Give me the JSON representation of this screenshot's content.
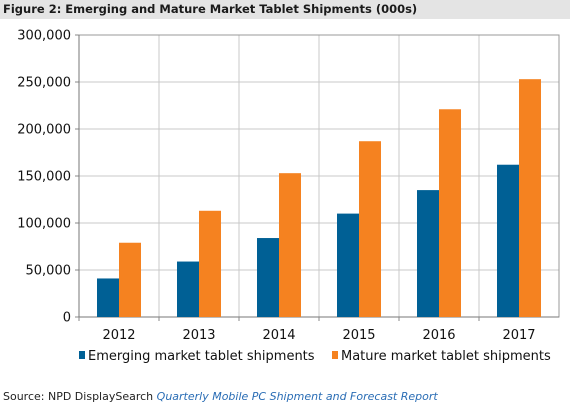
{
  "chart_data": {
    "type": "bar",
    "title": "Figure 2: Emerging and Mature Market Tablet Shipments (000s)",
    "categories": [
      "2012",
      "2013",
      "2014",
      "2015",
      "2016",
      "2017"
    ],
    "series": [
      {
        "name": "Emerging market tablet shipments",
        "color": "#006095",
        "values": [
          41000,
          59000,
          84000,
          110000,
          135000,
          162000
        ]
      },
      {
        "name": "Mature market tablet shipments",
        "color": "#f58220",
        "values": [
          79000,
          113000,
          153000,
          187000,
          221000,
          253000
        ]
      }
    ],
    "yticks": [
      "0",
      "50,000",
      "100,000",
      "150,000",
      "200,000",
      "250,000",
      "300,000"
    ],
    "ylim": [
      0,
      300000
    ],
    "xlabel": "",
    "ylabel": "",
    "grid": true,
    "legend_position": "bottom"
  },
  "source": {
    "prefix": "Source: NPD DisplaySearch ",
    "report": "Quarterly Mobile PC Shipment and Forecast Report"
  }
}
